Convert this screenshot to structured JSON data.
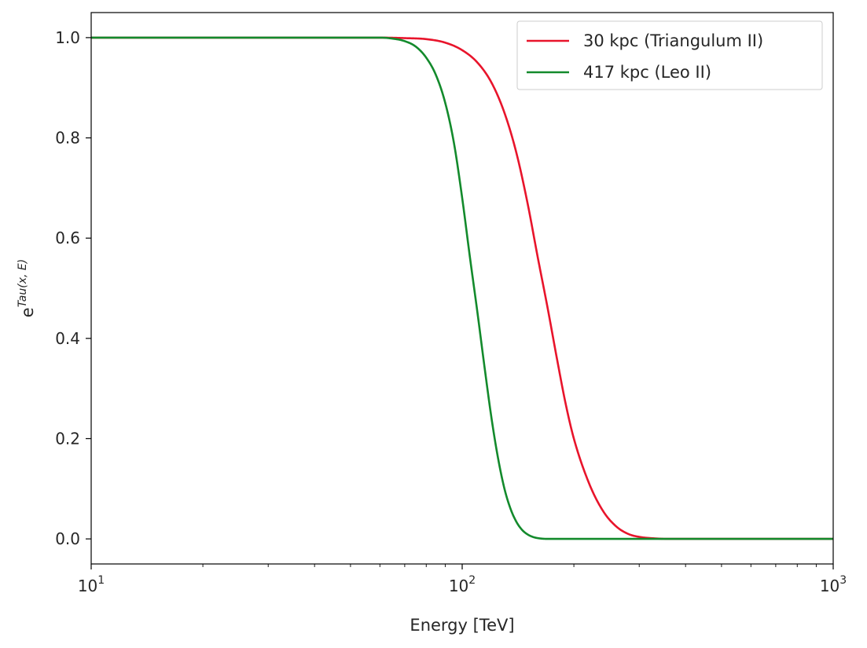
{
  "chart_data": {
    "type": "line",
    "xscale": "log",
    "xlim": [
      10,
      1000
    ],
    "ylim": [
      -0.05,
      1.05
    ],
    "xlabel": "Energy [TeV]",
    "ylabel": {
      "base": "e",
      "sup": "Tau(x, E)"
    },
    "xticks": [
      {
        "value": 10,
        "base": "10",
        "exp": "1"
      },
      {
        "value": 100,
        "base": "10",
        "exp": "2"
      },
      {
        "value": 1000,
        "base": "10",
        "exp": "3"
      }
    ],
    "yticks": [
      {
        "value": 0.0,
        "label": "0.0"
      },
      {
        "value": 0.2,
        "label": "0.2"
      },
      {
        "value": 0.4,
        "label": "0.4"
      },
      {
        "value": 0.6,
        "label": "0.6"
      },
      {
        "value": 0.8,
        "label": "0.8"
      },
      {
        "value": 1.0,
        "label": "1.0"
      }
    ],
    "grid": false,
    "legend_position": "top-right",
    "series": [
      {
        "name": "30 kpc (Triangulum II)",
        "color": "#e8142b",
        "x": [
          10,
          20,
          40,
          60,
          70,
          80,
          90,
          100,
          110,
          120,
          130,
          140,
          150,
          160,
          170,
          180,
          190,
          200,
          220,
          240,
          260,
          280,
          300,
          330,
          360,
          400,
          500,
          700,
          1000
        ],
        "y": [
          1.0,
          1.0,
          1.0,
          1.0,
          0.999,
          0.997,
          0.99,
          0.975,
          0.95,
          0.91,
          0.85,
          0.77,
          0.67,
          0.56,
          0.46,
          0.36,
          0.27,
          0.2,
          0.11,
          0.055,
          0.025,
          0.01,
          0.004,
          0.001,
          0.0,
          0.0,
          0.0,
          0.0,
          0.0
        ]
      },
      {
        "name": "417 kpc (Leo II)",
        "color": "#138a2c",
        "x": [
          10,
          20,
          40,
          60,
          65,
          70,
          75,
          80,
          85,
          90,
          95,
          100,
          105,
          110,
          115,
          120,
          125,
          130,
          135,
          140,
          145,
          150,
          155,
          160,
          170,
          200,
          300,
          500,
          1000
        ],
        "y": [
          1.0,
          1.0,
          1.0,
          1.0,
          0.998,
          0.993,
          0.982,
          0.96,
          0.925,
          0.87,
          0.79,
          0.68,
          0.56,
          0.45,
          0.34,
          0.24,
          0.16,
          0.1,
          0.06,
          0.034,
          0.018,
          0.009,
          0.004,
          0.0015,
          0.0,
          0.0,
          0.0,
          0.0,
          0.0
        ]
      }
    ]
  }
}
